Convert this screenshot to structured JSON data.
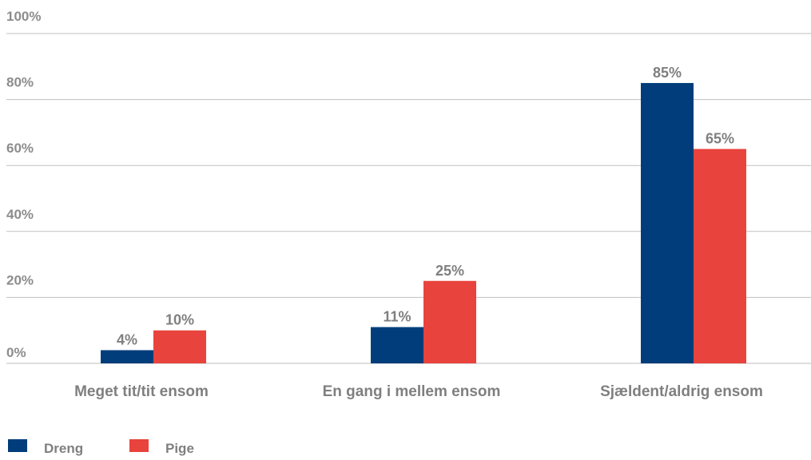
{
  "chart_data": {
    "type": "bar",
    "categories": [
      "Meget tit/tit ensom",
      "En gang i mellem ensom",
      "Sjældent/aldrig ensom"
    ],
    "series": [
      {
        "name": "Dreng",
        "color": "#003d7a",
        "values": [
          4,
          11,
          85
        ],
        "labels": [
          "4%",
          "11%",
          "85%"
        ]
      },
      {
        "name": "Pige",
        "color": "#e8433c",
        "values": [
          10,
          25,
          65
        ],
        "labels": [
          "10%",
          "25%",
          "65%"
        ]
      }
    ],
    "yticks": [
      0,
      20,
      40,
      60,
      80,
      100
    ],
    "ytick_labels": [
      "0%",
      "20%",
      "40%",
      "60%",
      "80%",
      "100%"
    ],
    "ylim": [
      0,
      100
    ],
    "grid": true,
    "legend_position": "bottom-left"
  }
}
